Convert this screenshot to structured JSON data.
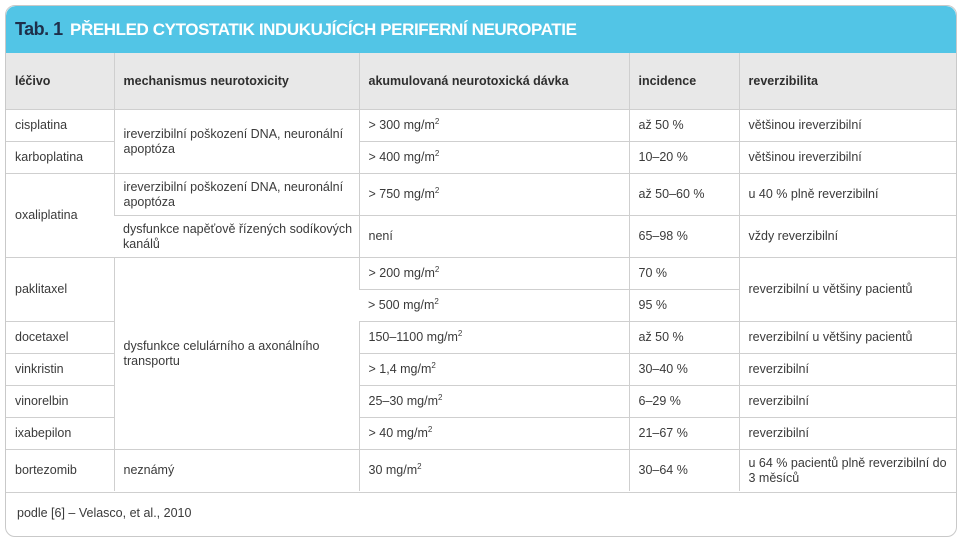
{
  "title": {
    "tab": "Tab. 1",
    "text": "PŘEHLED CYTOSTATIK INDUKUJÍCÍCH PERIFERNÍ NEUROPATIE"
  },
  "headers": {
    "drug": "léčivo",
    "mechanism": "mechanismus neurotoxicity",
    "dose": "akumulovaná neurotoxická dávka",
    "incidence": "incidence",
    "reversibility": "reverzibilita"
  },
  "cells": {
    "cisplatina": {
      "drug": "cisplatina",
      "dose": "> 300 mg/m",
      "dose_sup": "2",
      "incidence": "až 50 %",
      "reversibility": "většinou ireverzibilní"
    },
    "platin_mechanism": "ireverzibilní poškození DNA, neuronální apoptóza",
    "karboplatina": {
      "drug": "karboplatina",
      "dose": "> 400 mg/m",
      "dose_sup": "2",
      "incidence": "10–20 %",
      "reversibility": "většinou ireverzibilní"
    },
    "oxaliplatina": {
      "drug": "oxaliplatina",
      "row1": {
        "mechanism": "ireverzibilní poškození DNA, neuronální apoptóza",
        "dose": "> 750 mg/m",
        "dose_sup": "2",
        "incidence": "až 50–60 %",
        "reversibility": "u 40 % plně reverzibilní"
      },
      "row2": {
        "mechanism": "dysfunkce napěťově řízených sodíkových kanálů",
        "dose": "není",
        "incidence": "65–98 %",
        "reversibility": "vždy reverzibilní"
      }
    },
    "transport_mechanism": "dysfunkce celulárního a axonálního transportu",
    "paklitaxel": {
      "drug": "paklitaxel",
      "row1": {
        "dose": "> 200 mg/m",
        "dose_sup": "2",
        "incidence": "70 %"
      },
      "row2": {
        "dose": "> 500 mg/m",
        "dose_sup": "2",
        "incidence": "95 %"
      },
      "reversibility": "reverzibilní u většiny pacientů"
    },
    "docetaxel": {
      "drug": "docetaxel",
      "dose": "150–1100 mg/m",
      "dose_sup": "2",
      "incidence": "až 50 %",
      "reversibility": "reverzibilní u většiny pacientů"
    },
    "vinkristin": {
      "drug": "vinkristin",
      "dose": "> 1,4 mg/m",
      "dose_sup": "2",
      "incidence": "30–40 %",
      "reversibility": "reverzibilní"
    },
    "vinorelbin": {
      "drug": "vinorelbin",
      "dose": "25–30 mg/m",
      "dose_sup": "2",
      "incidence": "6–29 %",
      "reversibility": "reverzibilní"
    },
    "ixabepilon": {
      "drug": "ixabepilon",
      "dose": "> 40 mg/m",
      "dose_sup": "2",
      "incidence": "21–67 %",
      "reversibility": "reverzibilní"
    },
    "bortezomib": {
      "drug": "bortezomib",
      "mechanism": "neznámý",
      "dose": "30 mg/m",
      "dose_sup": "2",
      "incidence": "30–64 %",
      "reversibility": "u 64 % pacientů plně reverzibilní do 3 měsíců"
    }
  },
  "source": "podle [6] – Velasco, et al., 2010",
  "colors": {
    "title_bar": "#52c5e6",
    "header_bg": "#e8e8e8",
    "tab_label": "#1e2f4a"
  }
}
